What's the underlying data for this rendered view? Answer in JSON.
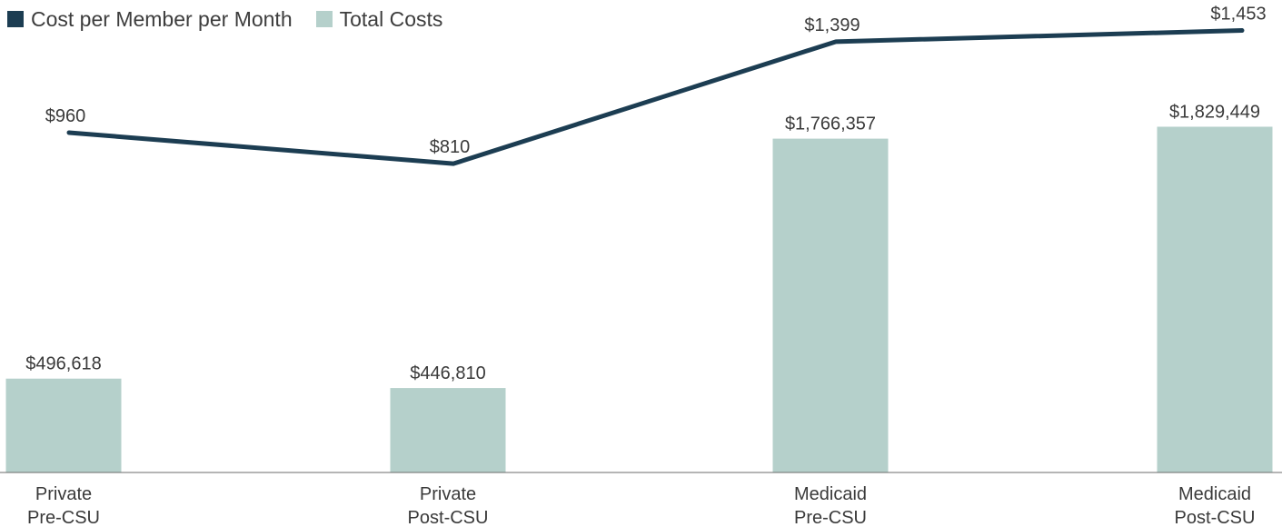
{
  "chart_data": {
    "type": "bar",
    "categories": [
      [
        "Private",
        "Pre-CSU"
      ],
      [
        "Private",
        "Post-CSU"
      ],
      [
        "Medicaid",
        "Pre-CSU"
      ],
      [
        "Medicaid",
        "Post-CSU"
      ]
    ],
    "series": [
      {
        "name": "Total Costs",
        "type": "bar",
        "axis": "primary",
        "values": [
          496618,
          446810,
          1766357,
          1829449
        ],
        "labels": [
          "$496,618",
          "$446,810",
          "$1,766,357",
          "$1,829,449"
        ],
        "color": "#b5d0cb"
      },
      {
        "name": "Cost per Member per Month",
        "type": "line",
        "axis": "secondary",
        "values": [
          960,
          810,
          1399,
          1453
        ],
        "labels": [
          "$960",
          "$810",
          "$1,399",
          "$1,453"
        ],
        "color": "#1c3d52"
      }
    ],
    "legend": {
      "position": "top-left",
      "items": [
        {
          "label": "Cost per Member per Month",
          "color": "#1c3d52"
        },
        {
          "label": "Total Costs",
          "color": "#b5d0cb"
        }
      ]
    },
    "title": "",
    "xlabel": "",
    "ylabel": "",
    "grid": false,
    "primary_ylim": [
      0,
      2500000
    ],
    "secondary_ylim": [
      -680,
      1600
    ]
  }
}
